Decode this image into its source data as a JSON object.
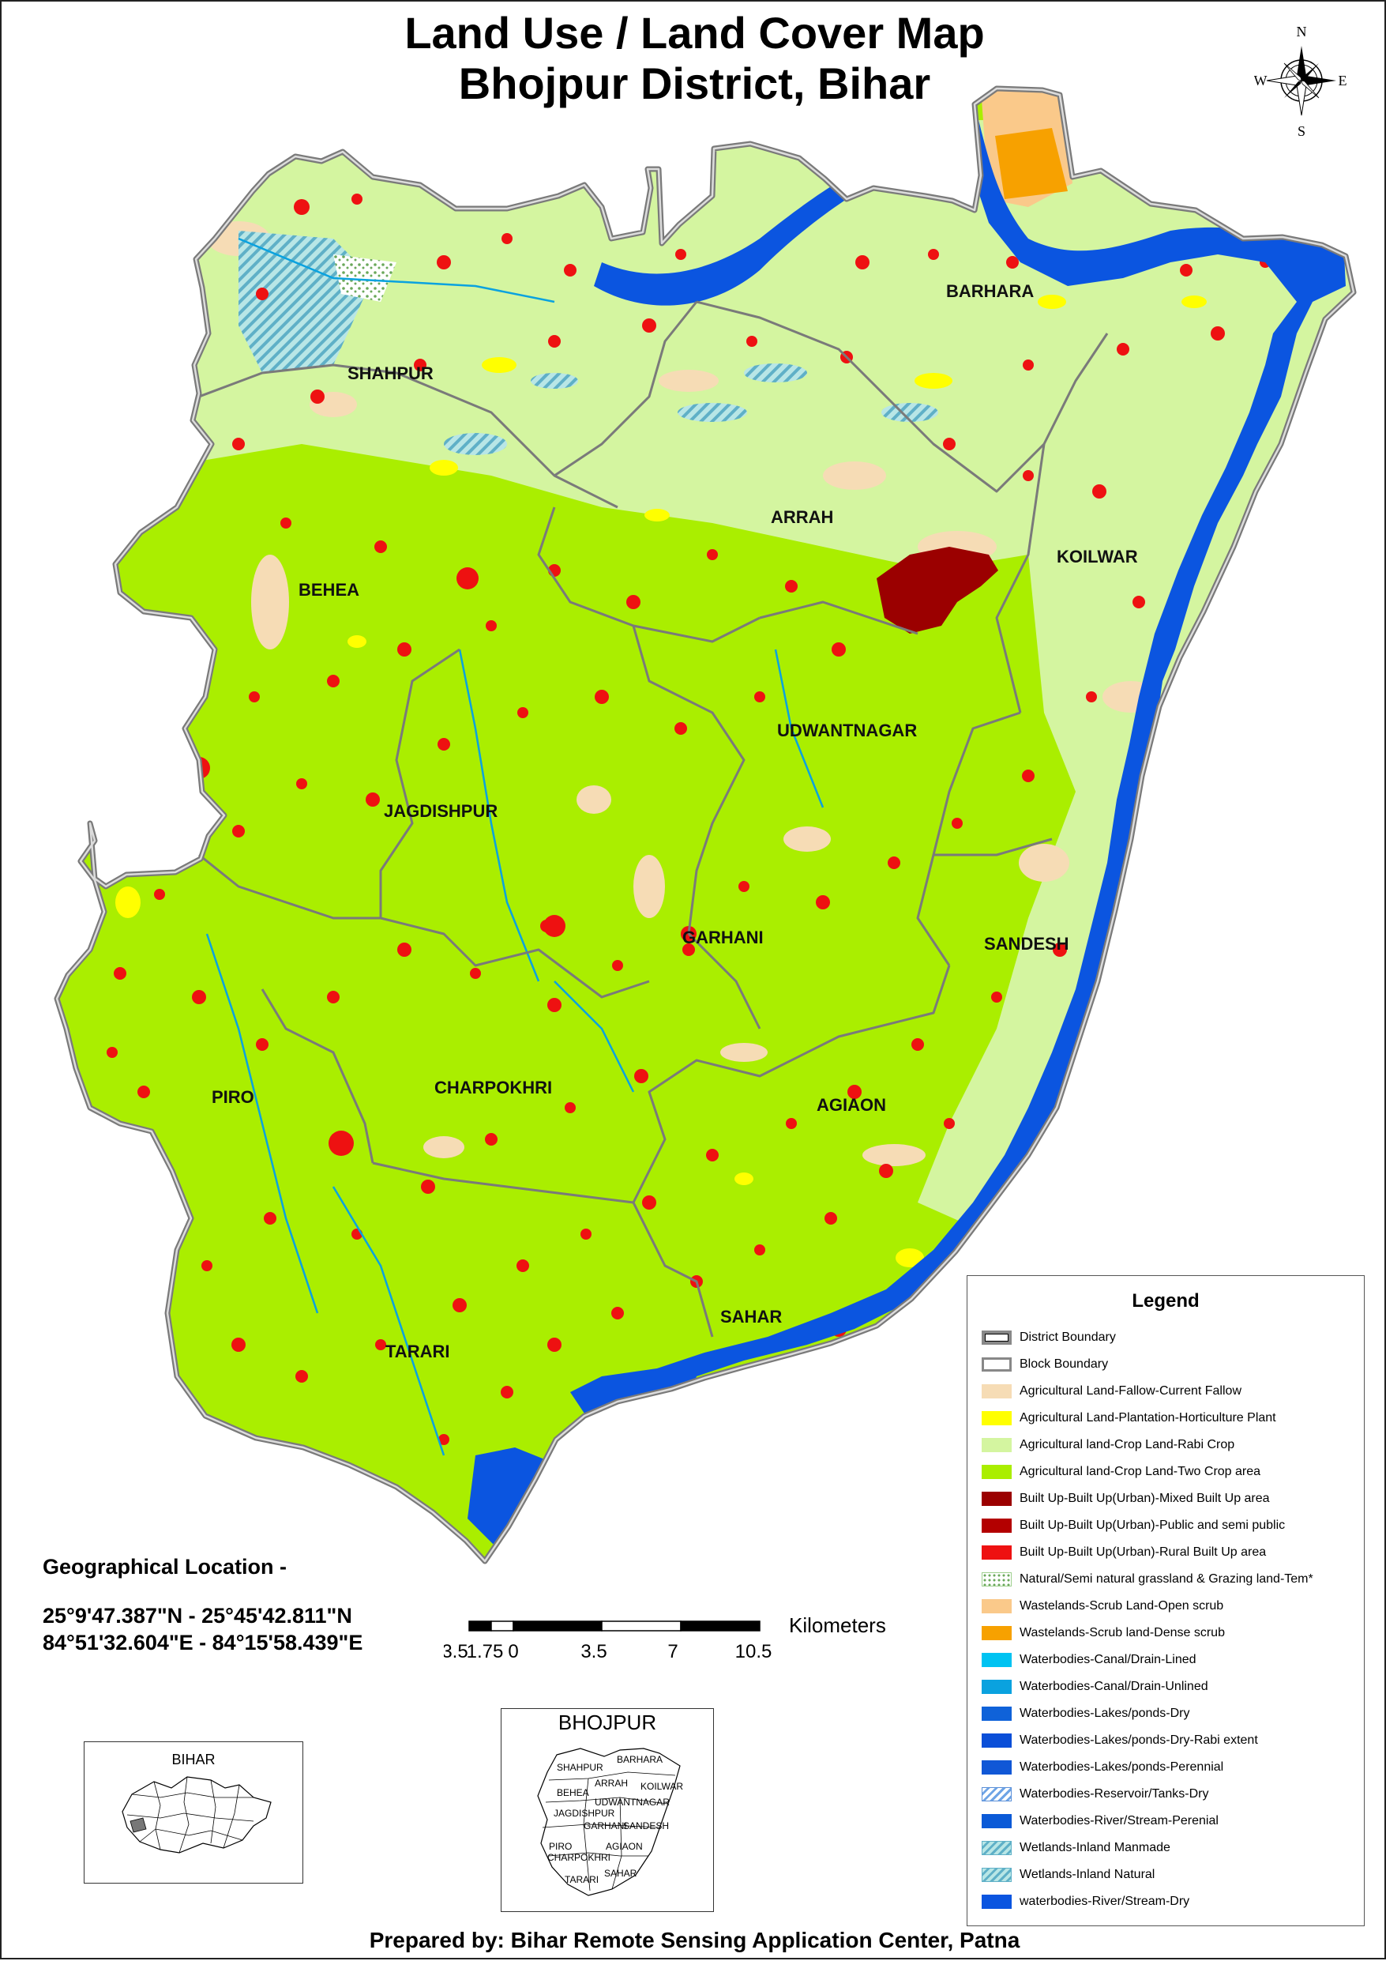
{
  "map": {
    "title_line1": "Land Use / Land Cover Map",
    "title_line2": "Bhojpur District, Bihar",
    "compass": {
      "n": "N",
      "e": "E",
      "s": "S",
      "w": "W"
    },
    "blocks": [
      "SHAHPUR",
      "BARHARA",
      "ARRAH",
      "KOILWAR",
      "BEHEA",
      "UDWANTNAGAR",
      "JAGDISHPUR",
      "GARHANI",
      "SANDESH",
      "PIRO",
      "CHARPOKHRI",
      "AGIAON",
      "SAHAR",
      "TARARI"
    ],
    "credit": "Prepared by: Bihar Remote Sensing Application Center, Patna"
  },
  "geo": {
    "title": "Geographical Location -",
    "latitude": "25°9'47.387\"N - 25°45'42.811\"N",
    "longitude": "84°51'32.604\"E - 84°15'58.439\"E"
  },
  "scale": {
    "unit": "Kilometers",
    "ticks": [
      "3.5",
      "1.75",
      "0",
      "3.5",
      "7",
      "10.5"
    ]
  },
  "legend": {
    "title": "Legend",
    "items": [
      {
        "label": "District Boundary",
        "color": "#888888",
        "style": "district-boundary"
      },
      {
        "label": "Block Boundary",
        "color": "#888888",
        "style": "block-boundary"
      },
      {
        "label": "Agricultural Land-Fallow-Current Fallow",
        "color": "#f6dcb5",
        "style": "fill"
      },
      {
        "label": "Agricultural Land-Plantation-Horticulture Plant",
        "color": "#ffff00",
        "style": "fill"
      },
      {
        "label": "Agricultural land-Crop Land-Rabi Crop",
        "color": "#d4f5a0",
        "style": "fill"
      },
      {
        "label": "Agricultural land-Crop Land-Two Crop area",
        "color": "#aaee00",
        "style": "fill"
      },
      {
        "label": "Built Up-Built Up(Urban)-Mixed Built Up area",
        "color": "#9b0000",
        "style": "fill"
      },
      {
        "label": "Built Up-Built Up(Urban)-Public and semi public",
        "color": "#b30000",
        "style": "fill"
      },
      {
        "label": "Built Up-Built Up(Urban)-Rural Built Up area",
        "color": "#ee1111",
        "style": "fill"
      },
      {
        "label": "Natural/Semi natural grassland & Grazing land-Tem*",
        "color": "#9fd08f",
        "style": "dots"
      },
      {
        "label": "Wastelands-Scrub Land-Open scrub",
        "color": "#fac98a",
        "style": "fill"
      },
      {
        "label": "Wastelands-Scrub land-Dense scrub",
        "color": "#f7a100",
        "style": "fill"
      },
      {
        "label": "Waterbodies-Canal/Drain-Lined",
        "color": "#00c3f2",
        "style": "fill"
      },
      {
        "label": "Waterbodies-Canal/Drain-Unlined",
        "color": "#0aa2df",
        "style": "fill"
      },
      {
        "label": "Waterbodies-Lakes/ponds-Dry",
        "color": "#0f62d9",
        "style": "fill"
      },
      {
        "label": "Waterbodies-Lakes/ponds-Dry-Rabi extent",
        "color": "#0b4fd8",
        "style": "fill"
      },
      {
        "label": "Waterbodies-Lakes/ponds-Perennial",
        "color": "#1057d6",
        "style": "fill"
      },
      {
        "label": "Waterbodies-Reservoir/Tanks-Dry",
        "color": "#6fa5e6",
        "style": "hatch"
      },
      {
        "label": "Waterbodies-River/Stream-Perenial",
        "color": "#0b5ad7",
        "style": "fill"
      },
      {
        "label": "Wetlands-Inland Manmade",
        "color": "#7dc9c9",
        "style": "hatch-green"
      },
      {
        "label": "Wetlands-Inland Natural",
        "color": "#7dc9c9",
        "style": "hatch-green"
      },
      {
        "label": "waterbodies-River/Stream-Dry",
        "color": "#0b55e0",
        "style": "fill"
      }
    ]
  },
  "inset_bihar": {
    "title": "BIHAR"
  },
  "inset_bhojpur": {
    "title": "BHOJPUR",
    "labels": [
      "SHAHPUR",
      "BARHARA",
      "ARRAH",
      "KOILWAR",
      "BEHEA",
      "UDWANTNAGAR",
      "JAGDISHPUR",
      "GARHANI",
      "SANDESH",
      "PIRO",
      "AGIAON",
      "CHARPOKHRI",
      "SAHAR",
      "TARARI"
    ]
  }
}
